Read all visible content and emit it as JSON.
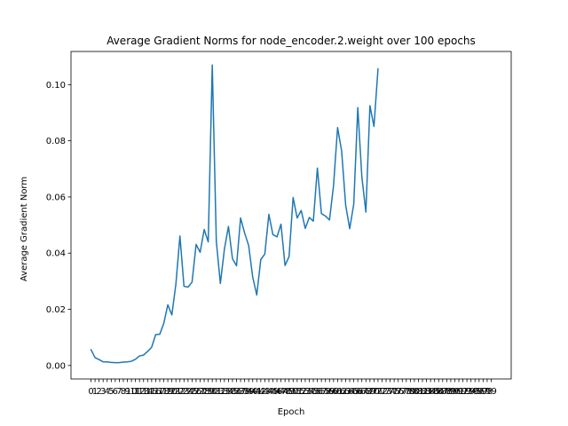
{
  "chart_data": {
    "type": "line",
    "title": "Average Gradient Norms for node_encoder.2.weight over 100 epochs",
    "xlabel": "Epoch",
    "ylabel": "Average Gradient Norm",
    "xlim": [
      -4.95,
      103.95
    ],
    "ylim": [
      -0.0048,
      0.1118
    ],
    "yticks": [
      "0.00",
      "0.02",
      "0.04",
      "0.06",
      "0.08",
      "0.10"
    ],
    "grid": false,
    "line_color": "#1f77b4",
    "x": [
      0,
      1,
      2,
      3,
      4,
      5,
      6,
      7,
      8,
      9,
      10,
      11,
      12,
      13,
      14,
      15,
      16,
      17,
      18,
      19,
      20,
      21,
      22,
      23,
      24,
      25,
      26,
      27,
      28,
      29,
      30,
      31,
      32,
      33,
      34,
      35,
      36,
      37,
      38,
      39,
      40,
      41,
      42,
      43,
      44,
      45,
      46,
      47,
      48,
      49,
      50,
      51,
      52,
      53,
      54,
      55,
      56,
      57,
      58,
      59,
      60,
      61,
      62,
      63,
      64,
      65,
      66,
      67,
      68,
      69,
      70
    ],
    "values": [
      0.0056,
      0.0028,
      0.0021,
      0.0013,
      0.0013,
      0.0011,
      0.001,
      0.001,
      0.0012,
      0.0013,
      0.0015,
      0.0022,
      0.0034,
      0.0037,
      0.005,
      0.0065,
      0.011,
      0.0111,
      0.015,
      0.0216,
      0.018,
      0.029,
      0.0461,
      0.0282,
      0.0279,
      0.0297,
      0.0431,
      0.0403,
      0.0484,
      0.044,
      0.107,
      0.0442,
      0.0292,
      0.0414,
      0.0495,
      0.038,
      0.0355,
      0.0525,
      0.0472,
      0.0427,
      0.0315,
      0.0251,
      0.0377,
      0.0397,
      0.0538,
      0.0466,
      0.0458,
      0.0503,
      0.0356,
      0.0388,
      0.0598,
      0.0525,
      0.0552,
      0.0488,
      0.0527,
      0.0514,
      0.0703,
      0.0541,
      0.0532,
      0.0518,
      0.0641,
      0.0847,
      0.0764,
      0.0571,
      0.0487,
      0.0575,
      0.0918,
      0.0672,
      0.0546,
      0.0925,
      0.0851
    ],
    "extra_point": [
      71,
      0.1056
    ]
  }
}
